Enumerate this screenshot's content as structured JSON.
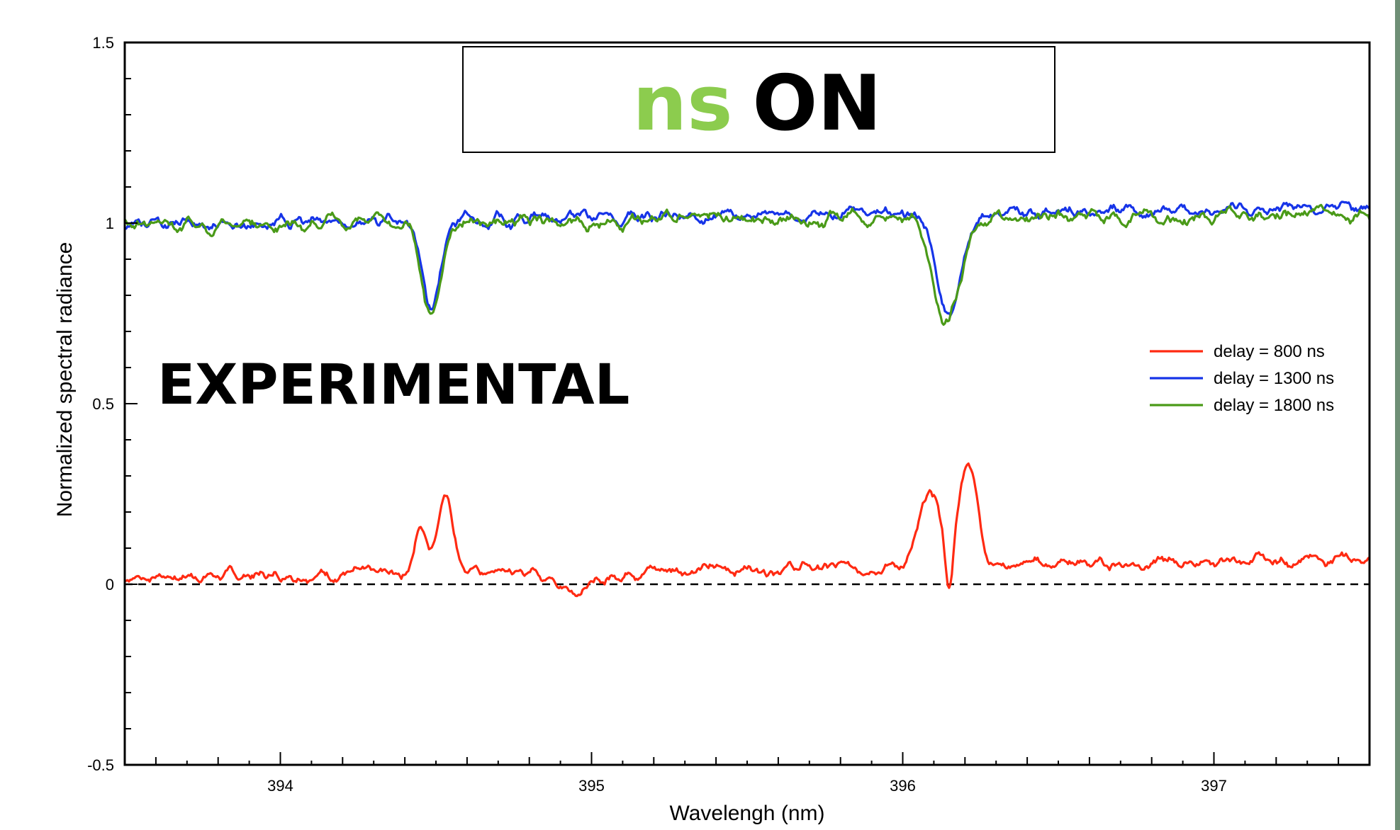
{
  "chart_data": {
    "type": "line",
    "title_parts": [
      {
        "text": "ns",
        "color": "#8ccc4e"
      },
      {
        "text": "ON",
        "color": "#000000"
      }
    ],
    "annotation": "EXPERIMENTAL",
    "xlabel": "Wavelengh (nm)",
    "ylabel": "Normalized spectral radiance",
    "xlim": [
      393.5,
      397.5
    ],
    "ylim": [
      -0.5,
      1.5
    ],
    "x_ticks": [
      394,
      395,
      396,
      397
    ],
    "x_tick_labels": [
      "394",
      "395",
      "396",
      "397"
    ],
    "y_ticks": [
      -0.5,
      0,
      0.5,
      1,
      1.5
    ],
    "y_tick_labels": [
      "-0.5",
      "0",
      "0.5",
      "1",
      "1.5"
    ],
    "reference_line": {
      "y": 0,
      "style": "dashed",
      "color": "#000000"
    },
    "legend_position": "right",
    "series": [
      {
        "name": "delay = 800 ns",
        "color": "#ff2a12",
        "baseline": 0.02,
        "noise": 0.018,
        "features": [
          {
            "center": 394.45,
            "width": 0.02,
            "amplitude": 0.12
          },
          {
            "center": 394.53,
            "width": 0.026,
            "amplitude": 0.22
          },
          {
            "center": 396.09,
            "width": 0.035,
            "amplitude": 0.2
          },
          {
            "center": 396.21,
            "width": 0.03,
            "amplitude": 0.29
          },
          {
            "center": 396.15,
            "width": 0.012,
            "amplitude": -0.15
          },
          {
            "center": 394.96,
            "width": 0.07,
            "amplitude": -0.05
          }
        ],
        "x": [
          393.5,
          393.6,
          393.8,
          394.0,
          394.2,
          394.35,
          394.45,
          394.49,
          394.53,
          394.6,
          394.7,
          394.8,
          394.9,
          394.96,
          395.05,
          395.2,
          395.4,
          395.6,
          395.8,
          395.95,
          396.03,
          396.09,
          396.15,
          396.21,
          396.3,
          396.4,
          396.6,
          396.75,
          396.9,
          397.1,
          397.3,
          397.5
        ],
        "values": [
          0.0,
          0.03,
          0.02,
          0.03,
          0.01,
          0.04,
          0.15,
          0.06,
          0.24,
          0.1,
          0.02,
          0.0,
          0.01,
          -0.05,
          -0.02,
          0.0,
          0.0,
          0.02,
          0.05,
          0.09,
          0.12,
          0.23,
          0.0,
          0.31,
          0.12,
          0.05,
          0.02,
          -0.02,
          0.04,
          0.02,
          0.05,
          0.08
        ]
      },
      {
        "name": "delay = 1300 ns",
        "color": "#1634e8",
        "baseline": 0.995,
        "noise": 0.02,
        "features": [
          {
            "center": 394.485,
            "width": 0.028,
            "amplitude": -0.25
          },
          {
            "center": 396.15,
            "width": 0.04,
            "amplitude": -0.29
          }
        ],
        "x": [
          393.5,
          393.7,
          393.9,
          394.1,
          394.3,
          394.42,
          394.485,
          394.56,
          394.7,
          394.9,
          395.1,
          395.3,
          395.5,
          395.7,
          395.9,
          396.05,
          396.15,
          396.25,
          396.45,
          396.7,
          396.9,
          397.1,
          397.3,
          397.4,
          397.5
        ],
        "values": [
          0.99,
          1.03,
          1.01,
          0.98,
          0.99,
          1.0,
          0.75,
          1.0,
          0.95,
          0.98,
          0.95,
          0.98,
          1.02,
          1.0,
          0.99,
          1.0,
          0.72,
          1.01,
          1.0,
          1.0,
          1.02,
          1.0,
          1.03,
          1.09,
          1.07
        ]
      },
      {
        "name": "delay = 1800 ns",
        "color": "#4a9a18",
        "baseline": 0.995,
        "noise": 0.022,
        "features": [
          {
            "center": 394.485,
            "width": 0.03,
            "amplitude": -0.27
          },
          {
            "center": 396.14,
            "width": 0.042,
            "amplitude": -0.29
          }
        ],
        "x": [
          393.5,
          393.7,
          393.9,
          394.1,
          394.3,
          394.42,
          394.485,
          394.56,
          394.7,
          394.9,
          395.1,
          395.3,
          395.5,
          395.7,
          395.9,
          396.05,
          396.14,
          396.25,
          396.45,
          396.7,
          396.9,
          397.1,
          397.3,
          397.4,
          397.5
        ],
        "values": [
          1.03,
          0.98,
          1.0,
          1.0,
          1.02,
          1.03,
          0.73,
          1.0,
          0.93,
          0.98,
          0.95,
          1.0,
          1.02,
          1.01,
          1.02,
          1.0,
          0.71,
          1.02,
          1.04,
          1.01,
          1.03,
          1.0,
          1.03,
          1.1,
          1.08
        ]
      }
    ]
  }
}
